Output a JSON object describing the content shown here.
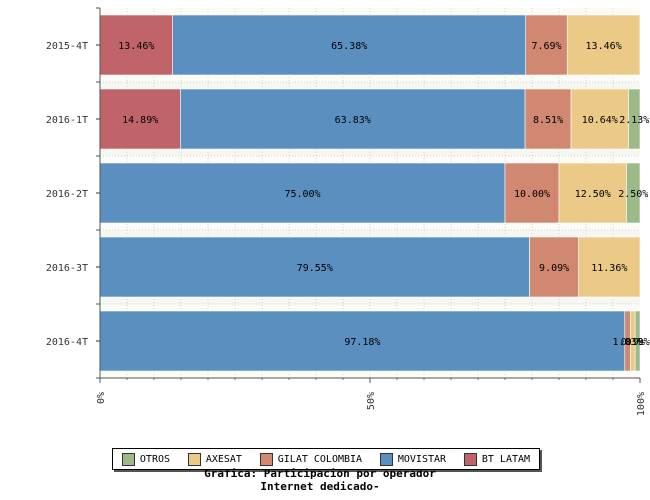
{
  "chart_data": {
    "type": "bar",
    "orientation": "horizontal",
    "stacked": "percent",
    "title": "Grafica: Participacion por operador",
    "subtitle": "Internet dedicado-",
    "categories": [
      "2015-4T",
      "2016-1T",
      "2016-2T",
      "2016-3T",
      "2016-4T"
    ],
    "series": [
      {
        "name": "BT LATAM",
        "color": "#c0646a",
        "values": [
          13.46,
          14.89,
          0,
          0,
          0
        ],
        "labels": [
          "13.46%",
          "14.89%",
          "",
          "",
          ""
        ]
      },
      {
        "name": "MOVISTAR",
        "color": "#5b8fc0",
        "values": [
          65.38,
          63.83,
          75.0,
          79.55,
          97.18
        ],
        "labels": [
          "65.38%",
          "63.83%",
          "75.00%",
          "79.55%",
          "97.18%"
        ]
      },
      {
        "name": "GILAT COLOMBIA",
        "color": "#d08870",
        "values": [
          7.69,
          8.51,
          10.0,
          9.09,
          1.03
        ],
        "labels": [
          "7.69%",
          "8.51%",
          "10.00%",
          "9.09%",
          "1.03%"
        ]
      },
      {
        "name": "AXESAT",
        "color": "#ebca88",
        "values": [
          13.46,
          10.64,
          12.5,
          11.36,
          0.9
        ],
        "labels": [
          "13.46%",
          "10.64%",
          "12.50%",
          "11.36%",
          "0.9%"
        ]
      },
      {
        "name": "OTROS",
        "color": "#9cba88",
        "values": [
          0,
          2.13,
          2.5,
          0,
          0.9
        ],
        "labels": [
          "",
          "2.13%",
          "2.50%",
          "",
          "0.9%"
        ]
      }
    ],
    "legend_order": [
      "OTROS",
      "AXESAT",
      "GILAT COLOMBIA",
      "MOVISTAR",
      "BT LATAM"
    ],
    "xlim": [
      0,
      100
    ],
    "xticks": [
      "0%",
      "50%",
      "100%"
    ],
    "grid": true,
    "legend_position": "bottom"
  }
}
